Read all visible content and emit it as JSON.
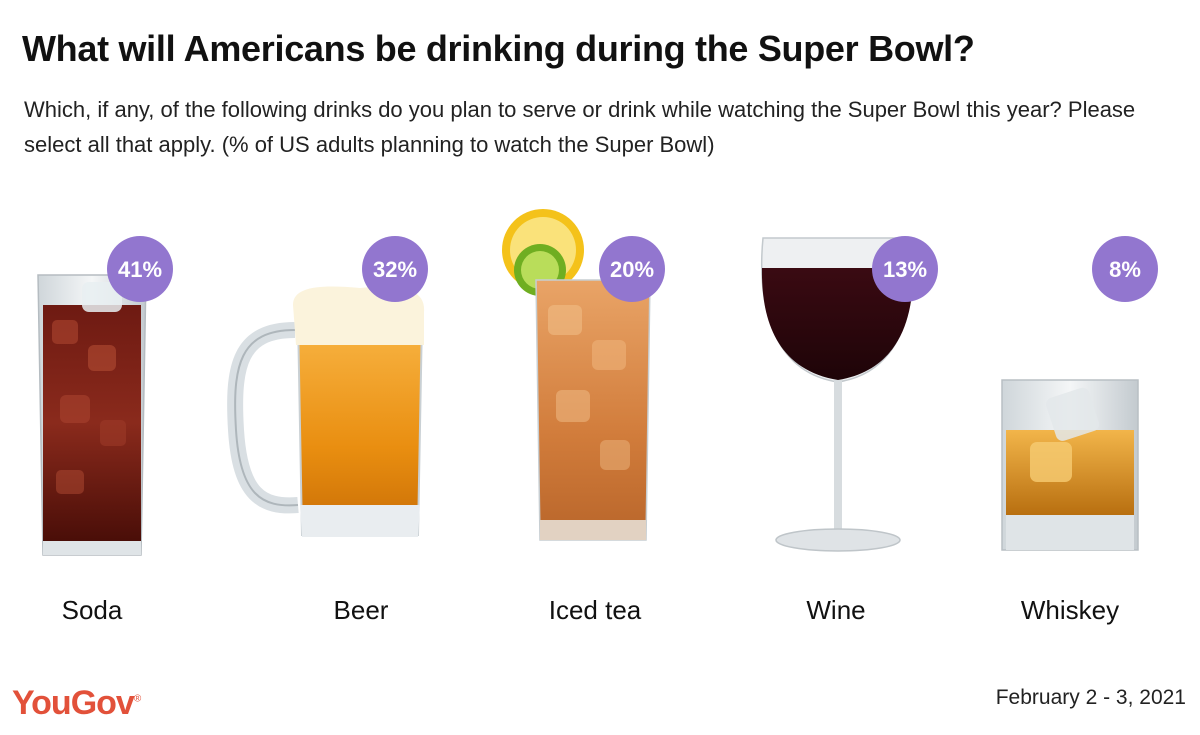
{
  "title": "What will Americans be drinking during the Super Bowl?",
  "subtitle": "Which, if any, of the following drinks do you plan to serve or drink while watching the Super Bowl this year? Please select all that apply. (% of US adults planning to watch the Super Bowl)",
  "brand": "YouGov",
  "date": "February 2 - 3, 2021",
  "colors": {
    "badge": "#9276cf",
    "brand": "#e2513a"
  },
  "chart_data": {
    "type": "table",
    "categories": [
      "Soda",
      "Beer",
      "Iced tea",
      "Wine",
      "Whiskey"
    ],
    "values": [
      41,
      32,
      20,
      13,
      8
    ],
    "value_labels": [
      "41%",
      "32%",
      "20%",
      "13%",
      "8%"
    ],
    "icons": [
      "soda-glass-icon",
      "beer-mug-icon",
      "iced-tea-glass-icon",
      "wine-glass-icon",
      "whiskey-glass-icon"
    ],
    "unit": "%"
  }
}
